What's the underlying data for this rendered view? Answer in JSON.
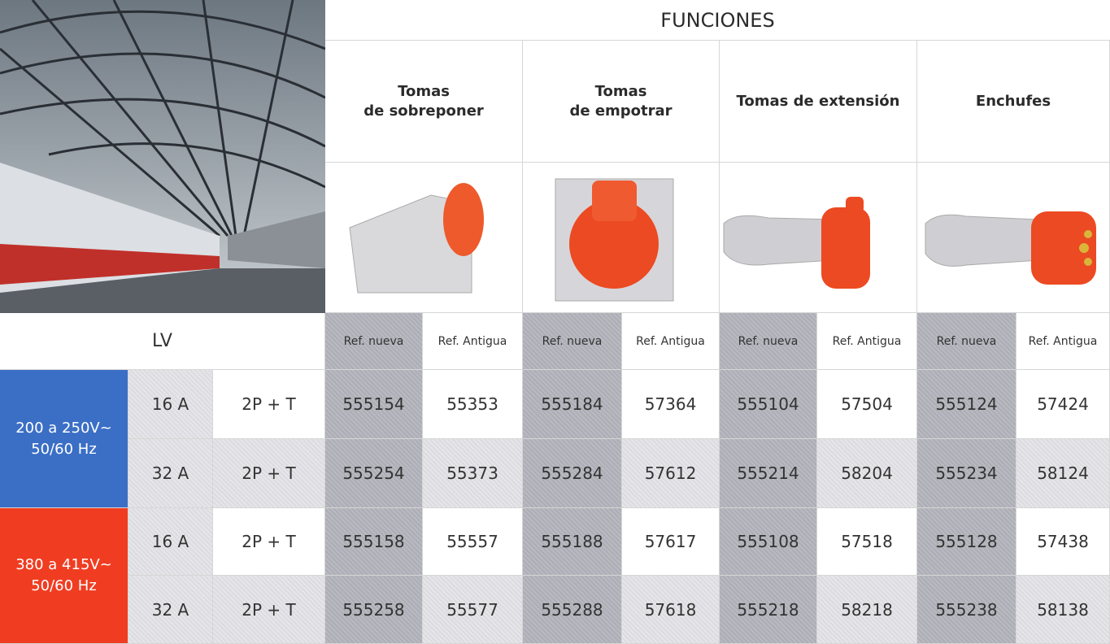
{
  "header": {
    "title": "FUNCIONES"
  },
  "columns": [
    "Tomas\nde sobreponer",
    "Tomas\nde empotrar",
    "Tomas de extensión",
    "Enchufes"
  ],
  "subheaders": [
    "Ref. nueva",
    "Ref. Antigua"
  ],
  "lv": "LV",
  "groups": [
    {
      "voltage": "200 a 250V~\n50/60 Hz",
      "rows": [
        {
          "current": "16 A",
          "poles": "2P + T",
          "refs": [
            555154,
            55353,
            555184,
            57364,
            555104,
            57504,
            555124,
            57424
          ]
        },
        {
          "current": "32 A",
          "poles": "2P + T",
          "refs": [
            555254,
            55373,
            555284,
            57612,
            555214,
            58204,
            555234,
            58124
          ]
        }
      ]
    },
    {
      "voltage": "380 a 415V~\n50/60 Hz",
      "rows": [
        {
          "current": "16 A",
          "poles": "2P + T",
          "refs": [
            555158,
            55557,
            555188,
            57617,
            555108,
            57518,
            555128,
            57438
          ]
        },
        {
          "current": "32 A",
          "poles": "2P + T",
          "refs": [
            555258,
            55577,
            555288,
            57618,
            555218,
            58218,
            555238,
            58138
          ]
        }
      ]
    }
  ]
}
